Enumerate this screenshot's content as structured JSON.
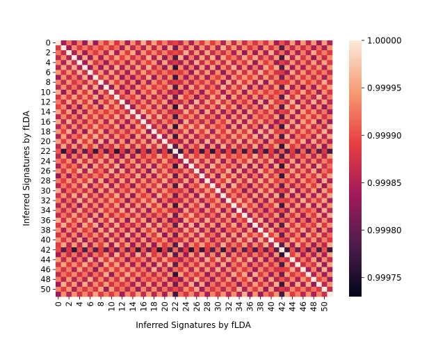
{
  "chart_data": {
    "type": "heatmap",
    "title": "",
    "xlabel": "Inferred Signatures by fLDA",
    "ylabel": "Inferred Signatures by fLDA",
    "n": 52,
    "x_tick_labels": [
      "0",
      "2",
      "4",
      "6",
      "8",
      "10",
      "12",
      "14",
      "16",
      "18",
      "20",
      "22",
      "24",
      "26",
      "28",
      "30",
      "32",
      "34",
      "36",
      "38",
      "40",
      "42",
      "44",
      "46",
      "48",
      "50"
    ],
    "y_tick_labels": [
      "0",
      "2",
      "4",
      "6",
      "8",
      "10",
      "12",
      "14",
      "16",
      "18",
      "20",
      "22",
      "24",
      "26",
      "28",
      "30",
      "32",
      "34",
      "36",
      "38",
      "40",
      "42",
      "44",
      "46",
      "48",
      "50"
    ],
    "colorbar": {
      "min": 0.99973,
      "max": 1.0,
      "tick_labels": [
        "0.99975",
        "0.99980",
        "0.99985",
        "0.99990",
        "0.99995",
        "1.00000"
      ],
      "tick_values": [
        0.99975,
        0.9998,
        0.99985,
        0.9999,
        0.99995,
        1.0
      ]
    },
    "colormap": "rocket",
    "colormap_stops": [
      "#03051a",
      "#4c1d4b",
      "#a11a5b",
      "#e83f3f",
      "#f69c73",
      "#faebdd"
    ],
    "pattern": {
      "diagonal_value": 1.0,
      "even_sum_value": 0.99993,
      "odd_sum_value": 0.99986,
      "dark_rows": [
        22,
        42
      ],
      "dark_cols": [
        22,
        42
      ],
      "dark_value": 0.99978
    },
    "grid": false
  }
}
